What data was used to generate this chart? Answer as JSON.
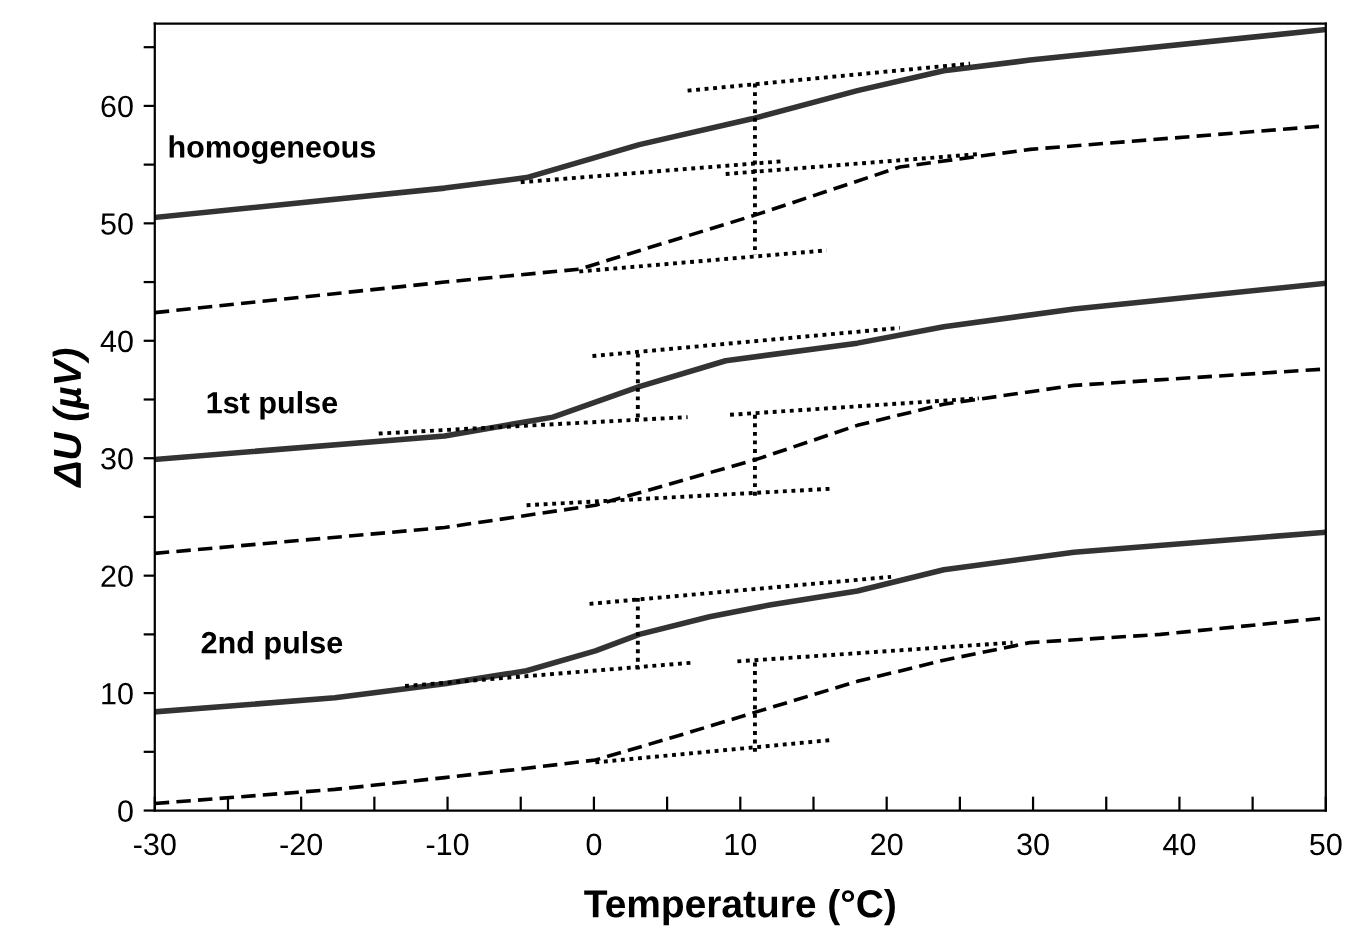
{
  "chart_data": {
    "type": "line",
    "xlabel": "Temperature (°C)",
    "ylabel": "ΔU (µV)",
    "xlim": [
      -30,
      50
    ],
    "ylim": [
      0,
      67
    ],
    "xticks": [
      -30,
      {
        "value": -25,
        "label": null
      },
      -20,
      {
        "value": -15,
        "label": null
      },
      -10,
      {
        "value": -5,
        "label": null
      },
      0,
      {
        "value": 5,
        "label": null
      },
      10,
      {
        "value": 15,
        "label": null
      },
      20,
      {
        "value": 25,
        "label": null
      },
      30,
      {
        "value": 35,
        "label": null
      },
      40,
      {
        "value": 45,
        "label": null
      },
      50
    ],
    "yticks": [
      0,
      {
        "value": 5,
        "label": null
      },
      10,
      {
        "value": 15,
        "label": null
      },
      20,
      {
        "value": 25,
        "label": null
      },
      30,
      {
        "value": 35,
        "label": null
      },
      40,
      {
        "value": 45,
        "label": null
      },
      50,
      {
        "value": 55,
        "label": null
      },
      60,
      {
        "value": 65,
        "label": null
      }
    ],
    "grid": false,
    "legend": false,
    "marker": "none",
    "series": [
      {
        "color": "#333333",
        "line_style": "solid",
        "x": [
          -30,
          -10.2,
          -4.6,
          3.1,
          10.8,
          18,
          23.9,
          29.8,
          50
        ],
        "values": [
          50.5,
          53.0,
          53.9,
          56.7,
          58.9,
          61.3,
          63.0,
          63.9,
          66.5
        ]
      },
      {
        "color": "#000000",
        "line_style": "dashed",
        "x": [
          -30,
          -10.2,
          -1,
          11,
          15.6,
          20.9,
          29.8,
          50
        ],
        "values": [
          42.4,
          45.0,
          46.1,
          50.7,
          52.6,
          54.8,
          56.3,
          58.3
        ]
      },
      {
        "color": "#333333",
        "line_style": "solid",
        "x": [
          -30,
          -10.2,
          -2.8,
          3.1,
          9,
          18,
          23.9,
          32.8,
          50
        ],
        "values": [
          29.9,
          31.9,
          33.5,
          36.1,
          38.3,
          39.8,
          41.2,
          42.7,
          44.9
        ]
      },
      {
        "color": "#000000",
        "line_style": "dashed",
        "x": [
          -30,
          -10.2,
          0.1,
          11.1,
          18,
          23.9,
          32.8,
          50
        ],
        "values": [
          21.9,
          24.1,
          26.0,
          29.9,
          32.8,
          34.6,
          36.2,
          37.6
        ]
      },
      {
        "color": "#333333",
        "line_style": "solid",
        "x": [
          -30,
          -17.7,
          -10.2,
          -4.6,
          0.1,
          3.1,
          7.9,
          12,
          18,
          23.9,
          32.8,
          50
        ],
        "values": [
          8.4,
          9.6,
          10.8,
          11.9,
          13.6,
          15.0,
          16.5,
          17.5,
          18.7,
          20.5,
          22.0,
          23.7
        ]
      },
      {
        "color": "#000000",
        "line_style": "dashed",
        "x": [
          -30,
          -17.7,
          -10.2,
          -4.6,
          0.1,
          6.1,
          11.1,
          18,
          23.9,
          29.8,
          38.7,
          50
        ],
        "values": [
          0.6,
          1.8,
          2.8,
          3.6,
          4.3,
          6.5,
          8.4,
          11.0,
          12.8,
          14.3,
          15.0,
          16.4
        ]
      },
      {
        "color": "#000000",
        "line_style": "dotted",
        "x": [
          6.4,
          25.7
        ],
        "values": [
          61.3,
          63.6
        ]
      },
      {
        "color": "#000000",
        "line_style": "dotted",
        "x": [
          -5,
          13
        ],
        "values": [
          53.5,
          55.3
        ]
      },
      {
        "color": "#000000",
        "line_style": "dotted",
        "x": [
          9,
          26.3
        ],
        "values": [
          54.2,
          55.9
        ]
      },
      {
        "color": "#000000",
        "line_style": "dotted",
        "x": [
          -1,
          15.9
        ],
        "values": [
          45.9,
          47.7
        ]
      },
      {
        "color": "#000000",
        "line_style": "dotted",
        "x": [
          11,
          11
        ],
        "values": [
          61.9,
          47.3
        ]
      },
      {
        "color": "#000000",
        "line_style": "dotted",
        "x": [
          -0.1,
          20.9
        ],
        "values": [
          38.7,
          41.1
        ]
      },
      {
        "color": "#000000",
        "line_style": "dotted",
        "x": [
          -14.7,
          6.4
        ],
        "values": [
          32.1,
          33.5
        ]
      },
      {
        "color": "#000000",
        "line_style": "dotted",
        "x": [
          3,
          3
        ],
        "values": [
          38.9,
          33.2
        ]
      },
      {
        "color": "#000000",
        "line_style": "dotted",
        "x": [
          9.3,
          26.3
        ],
        "values": [
          33.7,
          35.1
        ]
      },
      {
        "color": "#000000",
        "line_style": "dotted",
        "x": [
          -4.6,
          16.2
        ],
        "values": [
          26.0,
          27.4
        ]
      },
      {
        "color": "#000000",
        "line_style": "dotted",
        "x": [
          11,
          11
        ],
        "values": [
          33.7,
          26.6
        ]
      },
      {
        "color": "#000000",
        "line_style": "dotted",
        "x": [
          -0.3,
          20.3
        ],
        "values": [
          17.6,
          19.9
        ]
      },
      {
        "color": "#000000",
        "line_style": "dotted",
        "x": [
          -12.9,
          6.8
        ],
        "values": [
          10.6,
          12.6
        ]
      },
      {
        "color": "#000000",
        "line_style": "dotted",
        "x": [
          3,
          3
        ],
        "values": [
          18.1,
          12.0
        ]
      },
      {
        "color": "#000000",
        "line_style": "dotted",
        "x": [
          9.8,
          28.6
        ],
        "values": [
          12.7,
          14.3
        ]
      },
      {
        "color": "#000000",
        "line_style": "dotted",
        "x": [
          0.1,
          16.2
        ],
        "values": [
          4.1,
          6.0
        ]
      },
      {
        "color": "#000000",
        "line_style": "dotted",
        "x": [
          11,
          11
        ],
        "values": [
          12.6,
          5.0
        ]
      }
    ],
    "annotations": [
      "homogeneous",
      "1st pulse",
      "2nd pulse"
    ]
  }
}
